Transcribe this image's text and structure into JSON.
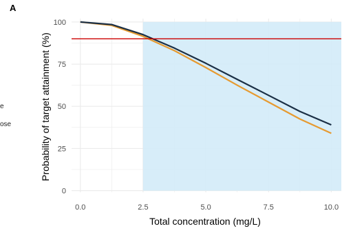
{
  "panel_tag": "A",
  "legend_fragments": [
    "e",
    "ose"
  ],
  "colors": {
    "target_region": "#d3ebf8",
    "target_line": "#cc0000",
    "series_dark": "#1b2f45",
    "series_orange": "#e69a30",
    "grid": "#ebebeb"
  },
  "chart_data": {
    "type": "line",
    "xlabel": "Total concentration (mg/L)",
    "ylabel": "Probability of target attainment (%)",
    "xlim": [
      -0.35,
      10.4
    ],
    "ylim": [
      -1,
      102
    ],
    "x_ticks": [
      0.0,
      2.5,
      5.0,
      7.5,
      10.0
    ],
    "x_tick_labels": [
      "0.0",
      "2.5",
      "5.0",
      "7.5",
      "10.0"
    ],
    "y_ticks": [
      0,
      25,
      50,
      75,
      100
    ],
    "y_tick_labels": [
      "0",
      "25",
      "50",
      "75",
      "100"
    ],
    "grid": true,
    "shaded_region": {
      "x_from": 2.5,
      "x_to": 10.4,
      "y_from": 0,
      "y_to": 100
    },
    "hline": {
      "y": 90
    },
    "series": [
      {
        "x": [
          0.0,
          1.25,
          2.5,
          3.75,
          5.0,
          6.25,
          7.5,
          8.75,
          10.0
        ],
        "values": [
          100,
          98.5,
          92.5,
          84.5,
          75.5,
          66,
          56.5,
          47,
          39
        ],
        "color_key": "series_dark"
      },
      {
        "x": [
          0.0,
          1.25,
          2.5,
          3.75,
          5.0,
          6.25,
          7.5,
          8.75,
          10.0
        ],
        "values": [
          100,
          98,
          91.5,
          83,
          73,
          62.5,
          52.5,
          42.5,
          34
        ],
        "color_key": "series_orange"
      }
    ]
  }
}
